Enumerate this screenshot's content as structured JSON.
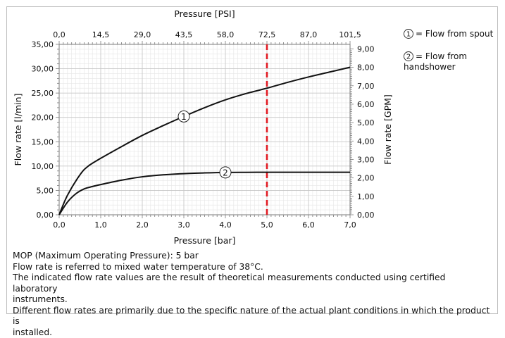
{
  "chart_data": {
    "type": "line",
    "title": "",
    "xlabel": "Pressure [bar]",
    "ylabel": "Flow rate [l/min]",
    "x_top_label": "Pressure [PSI]",
    "y_right_label": "Flow rate [GPM]",
    "xlim": [
      0,
      7
    ],
    "ylim": [
      0,
      35
    ],
    "x_ticks": [
      "0,0",
      "1,0",
      "2,0",
      "3,0",
      "4,0",
      "5,0",
      "6,0",
      "7,0"
    ],
    "y_ticks": [
      "0,00",
      "5,00",
      "10,00",
      "15,00",
      "20,00",
      "25,00",
      "30,00",
      "35,00"
    ],
    "x_top_ticks": [
      "0,0",
      "14,5",
      "29,0",
      "43,5",
      "58,0",
      "72,5",
      "87,0",
      "101,5"
    ],
    "y_right_ticks": [
      "0,00",
      "1,00",
      "2,00",
      "3,00",
      "4,00",
      "5,00",
      "6,00",
      "7,00",
      "8,00",
      "9,00"
    ],
    "grid": true,
    "reference_line": {
      "x": 5.0,
      "color": "#e21b23",
      "style": "dashed"
    },
    "series": [
      {
        "marker": "1",
        "x": [
          0,
          0.2,
          0.5,
          0.7,
          1.0,
          1.5,
          2.0,
          2.5,
          3.0,
          3.5,
          4.0,
          4.5,
          5.0,
          5.5,
          6.0,
          6.5,
          7.0
        ],
        "values": [
          0,
          4.0,
          8.2,
          10.0,
          11.6,
          14.0,
          16.3,
          18.3,
          20.2,
          22.0,
          23.6,
          24.9,
          26.0,
          27.2,
          28.3,
          29.3,
          30.3
        ]
      },
      {
        "marker": "2",
        "x": [
          0,
          0.2,
          0.4,
          0.6,
          0.8,
          1.0,
          1.5,
          2.0,
          2.5,
          3.0,
          3.5,
          4.0,
          4.5,
          5.0,
          5.5,
          6.0,
          6.5,
          7.0
        ],
        "values": [
          0,
          2.6,
          4.3,
          5.3,
          5.8,
          6.2,
          7.1,
          7.8,
          8.2,
          8.45,
          8.6,
          8.7,
          8.72,
          8.73,
          8.73,
          8.73,
          8.73,
          8.73
        ]
      }
    ],
    "legend": [
      {
        "symbol": "1",
        "text": "= Flow from spout"
      },
      {
        "symbol": "2",
        "text": "= Flow from",
        "text2": "handshower"
      }
    ],
    "colors": {
      "line": "#111111",
      "grid_major": "#c8c8c8",
      "grid_minor": "#e6e6e6",
      "reference": "#e21b23"
    }
  },
  "notes": [
    "MOP (Maximum Operating Pressure): 5 bar",
    "Flow rate is referred to mixed water temperature of 38°C.",
    "The indicated flow rate values are the result of theoretical measurements conducted using certified laboratory",
    "instruments.",
    "Different flow rates are primarily due to the specific nature of the actual plant conditions in which the product is",
    "installed."
  ]
}
